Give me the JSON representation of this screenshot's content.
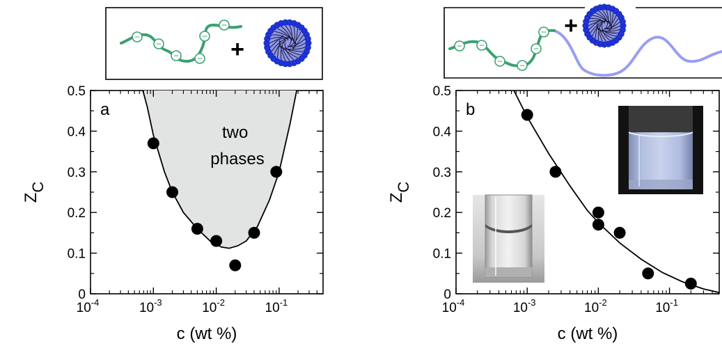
{
  "chart_data": [
    {
      "type": "scatter",
      "panel_label": "a",
      "xlabel": "c (wt %)",
      "ylabel": "Z",
      "ylabel_subscript": "C",
      "x_scale": "log",
      "xlim": [
        0.0001,
        0.5
      ],
      "ylim": [
        0,
        0.5
      ],
      "x_ticks": [
        0.0001,
        0.001,
        0.01,
        0.1
      ],
      "x_tick_labels": [
        {
          "base": "10",
          "exp": "-4"
        },
        {
          "base": "10",
          "exp": "-3"
        },
        {
          "base": "10",
          "exp": "-2"
        },
        {
          "base": "10",
          "exp": "-1"
        }
      ],
      "y_ticks": [
        0,
        0.1,
        0.2,
        0.3,
        0.4,
        0.5
      ],
      "y_tick_labels": [
        "0",
        "0.1",
        "0.2",
        "0.3",
        "0.4",
        "0.5"
      ],
      "grid": false,
      "region_label_lines": [
        "two",
        "phases"
      ],
      "region_color": "#e2e3e3",
      "points": [
        {
          "x": 0.001,
          "y": 0.37
        },
        {
          "x": 0.002,
          "y": 0.25
        },
        {
          "x": 0.005,
          "y": 0.16
        },
        {
          "x": 0.01,
          "y": 0.13
        },
        {
          "x": 0.02,
          "y": 0.07
        },
        {
          "x": 0.04,
          "y": 0.15
        },
        {
          "x": 0.09,
          "y": 0.3
        }
      ],
      "boundary_curve": [
        {
          "x": 0.00068,
          "y": 0.5
        },
        {
          "x": 0.0008,
          "y": 0.46
        },
        {
          "x": 0.001,
          "y": 0.39
        },
        {
          "x": 0.0015,
          "y": 0.3
        },
        {
          "x": 0.002,
          "y": 0.25
        },
        {
          "x": 0.003,
          "y": 0.2
        },
        {
          "x": 0.005,
          "y": 0.16
        },
        {
          "x": 0.008,
          "y": 0.13
        },
        {
          "x": 0.012,
          "y": 0.115
        },
        {
          "x": 0.016,
          "y": 0.112
        },
        {
          "x": 0.022,
          "y": 0.118
        },
        {
          "x": 0.03,
          "y": 0.13
        },
        {
          "x": 0.045,
          "y": 0.165
        },
        {
          "x": 0.07,
          "y": 0.23
        },
        {
          "x": 0.1,
          "y": 0.3
        },
        {
          "x": 0.15,
          "y": 0.42
        },
        {
          "x": 0.19,
          "y": 0.5
        }
      ]
    },
    {
      "type": "scatter",
      "panel_label": "b",
      "xlabel": "c (wt %)",
      "ylabel": "Z",
      "ylabel_subscript": "C",
      "x_scale": "log",
      "xlim": [
        0.0001,
        0.5
      ],
      "ylim": [
        0,
        0.5
      ],
      "x_ticks": [
        0.0001,
        0.001,
        0.01,
        0.1
      ],
      "x_tick_labels": [
        {
          "base": "10",
          "exp": "-4"
        },
        {
          "base": "10",
          "exp": "-3"
        },
        {
          "base": "10",
          "exp": "-2"
        },
        {
          "base": "10",
          "exp": "-1"
        }
      ],
      "y_ticks": [
        0,
        0.1,
        0.2,
        0.3,
        0.4,
        0.5
      ],
      "y_tick_labels": [
        "0",
        "0.1",
        "0.2",
        "0.3",
        "0.4",
        "0.5"
      ],
      "grid": false,
      "points": [
        {
          "x": 0.001,
          "y": 0.44
        },
        {
          "x": 0.0025,
          "y": 0.3
        },
        {
          "x": 0.01,
          "y": 0.2
        },
        {
          "x": 0.01,
          "y": 0.17
        },
        {
          "x": 0.02,
          "y": 0.15
        },
        {
          "x": 0.05,
          "y": 0.05
        },
        {
          "x": 0.2,
          "y": 0.025
        }
      ],
      "fit_curve": [
        {
          "x": 0.00065,
          "y": 0.5
        },
        {
          "x": 0.001,
          "y": 0.435
        },
        {
          "x": 0.002,
          "y": 0.345
        },
        {
          "x": 0.004,
          "y": 0.265
        },
        {
          "x": 0.007,
          "y": 0.205
        },
        {
          "x": 0.01,
          "y": 0.175
        },
        {
          "x": 0.02,
          "y": 0.125
        },
        {
          "x": 0.04,
          "y": 0.085
        },
        {
          "x": 0.08,
          "y": 0.052
        },
        {
          "x": 0.15,
          "y": 0.03
        },
        {
          "x": 0.3,
          "y": 0.012
        },
        {
          "x": 0.5,
          "y": 0.003
        }
      ]
    }
  ],
  "colors": {
    "polyelectrolyte": "#3aa170",
    "neutral_block": "#9a9ef0",
    "micelle_shell": "#1f33d9",
    "micelle_core": "#8f97e8",
    "vial_cloudy": "#b3bfe0"
  },
  "schematic": {
    "charge_symbol": "−",
    "plus_symbol": "+"
  }
}
